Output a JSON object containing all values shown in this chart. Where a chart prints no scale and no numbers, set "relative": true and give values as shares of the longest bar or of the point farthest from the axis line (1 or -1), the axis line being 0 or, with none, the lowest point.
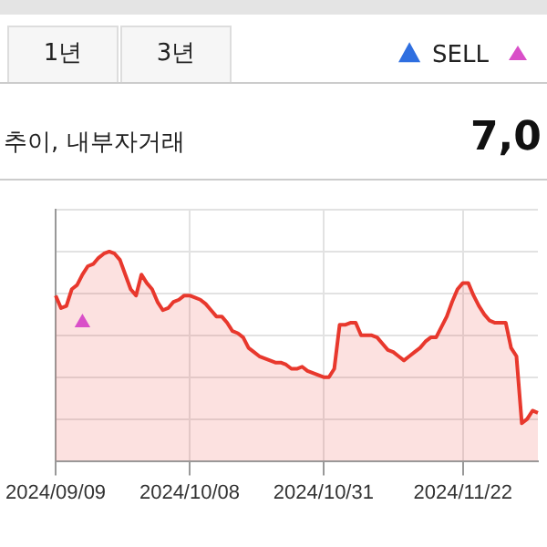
{
  "chart_data": {
    "type": "area",
    "title": "추이, 내부자거래",
    "subtitle": "7,0",
    "relative": true,
    "grid": true,
    "legend": "top right",
    "annotations": [
      "1년",
      "3년"
    ],
    "categories": [
      "2024/09/09",
      null,
      null,
      null,
      null,
      null,
      null,
      null,
      null,
      null,
      null,
      null,
      null,
      null,
      null,
      null,
      null,
      null,
      null,
      null,
      null,
      null,
      null,
      null,
      null,
      "2024/10/08",
      null,
      null,
      null,
      null,
      null,
      null,
      null,
      null,
      null,
      null,
      null,
      null,
      null,
      null,
      null,
      null,
      null,
      null,
      null,
      null,
      null,
      null,
      null,
      null,
      "2024/10/31",
      null,
      null,
      null,
      null,
      null,
      null,
      null,
      null,
      null,
      null,
      null,
      null,
      null,
      null,
      null,
      null,
      null,
      null,
      null,
      null,
      null,
      null,
      null,
      null,
      null,
      "2024/11/22",
      null,
      null,
      null,
      null,
      null,
      null,
      null,
      null,
      null,
      null,
      null,
      null,
      null,
      null
    ],
    "series": [
      {
        "type": "area",
        "color": "#e8382d",
        "values": [
          0.79,
          0.73,
          0.74,
          0.82,
          0.84,
          0.89,
          0.93,
          0.94,
          0.97,
          0.99,
          1,
          0.99,
          0.96,
          0.89,
          0.82,
          0.79,
          0.89,
          0.85,
          0.82,
          0.76,
          0.72,
          0.73,
          0.76,
          0.77,
          0.79,
          0.79,
          0.78,
          0.77,
          0.75,
          0.72,
          0.69,
          0.69,
          0.66,
          0.62,
          0.61,
          0.59,
          0.54,
          0.52,
          0.5,
          0.49,
          0.48,
          0.47,
          0.47,
          0.46,
          0.44,
          0.44,
          0.45,
          0.43,
          0.42,
          0.41,
          0.4,
          0.4,
          0.44,
          0.65,
          0.65,
          0.66,
          0.66,
          0.6,
          0.6,
          0.6,
          0.59,
          0.56,
          0.53,
          0.52,
          0.5,
          0.48,
          0.5,
          0.52,
          0.54,
          0.57,
          0.59,
          0.59,
          0.64,
          0.69,
          0.76,
          0.82,
          0.85,
          0.85,
          0.79,
          0.74,
          0.7,
          0.67,
          0.66,
          0.66,
          0.66,
          0.54,
          0.5,
          0.18,
          0.2,
          0.24,
          0.23
        ]
      },
      {
        "type": "scatter",
        "name": "SELL",
        "color": "#2f6fe0",
        "marker": "triangle",
        "values": [
          null,
          null,
          null,
          null,
          null,
          null,
          null,
          null,
          null,
          null,
          null,
          null,
          null,
          null,
          null,
          null,
          null,
          null,
          null,
          null,
          null,
          null,
          null,
          null,
          null,
          null,
          null,
          null,
          null,
          null,
          null,
          null,
          null,
          null,
          null,
          null,
          null,
          null,
          null,
          null,
          null,
          null,
          null,
          null,
          null,
          null,
          null,
          null,
          null,
          null,
          null,
          null,
          null,
          null,
          null,
          null,
          null,
          null,
          null,
          null,
          null,
          null,
          null,
          null,
          null,
          null,
          null,
          null,
          null,
          null,
          null,
          null,
          null,
          null,
          null,
          null,
          null,
          null,
          null,
          null,
          null,
          null,
          null,
          null,
          null,
          null,
          null,
          null,
          null,
          null,
          null
        ]
      },
      {
        "type": "scatter",
        "color": "#d94fc8",
        "marker": "triangle",
        "values": [
          null,
          null,
          null,
          null,
          null,
          0.66,
          null,
          null,
          null,
          null,
          null,
          null,
          null,
          null,
          null,
          null,
          null,
          null,
          null,
          null,
          null,
          null,
          null,
          null,
          null,
          null,
          null,
          null,
          null,
          null,
          null,
          null,
          null,
          null,
          null,
          null,
          null,
          null,
          null,
          null,
          null,
          null,
          null,
          null,
          null,
          null,
          null,
          null,
          null,
          null,
          null,
          null,
          null,
          null,
          null,
          null,
          null,
          null,
          null,
          null,
          null,
          null,
          null,
          null,
          null,
          null,
          null,
          null,
          null,
          null,
          null,
          null,
          null,
          null,
          null,
          null,
          null,
          null,
          null,
          null,
          null,
          null,
          null,
          null,
          null,
          null,
          null,
          null,
          null,
          null,
          null
        ]
      }
    ]
  }
}
